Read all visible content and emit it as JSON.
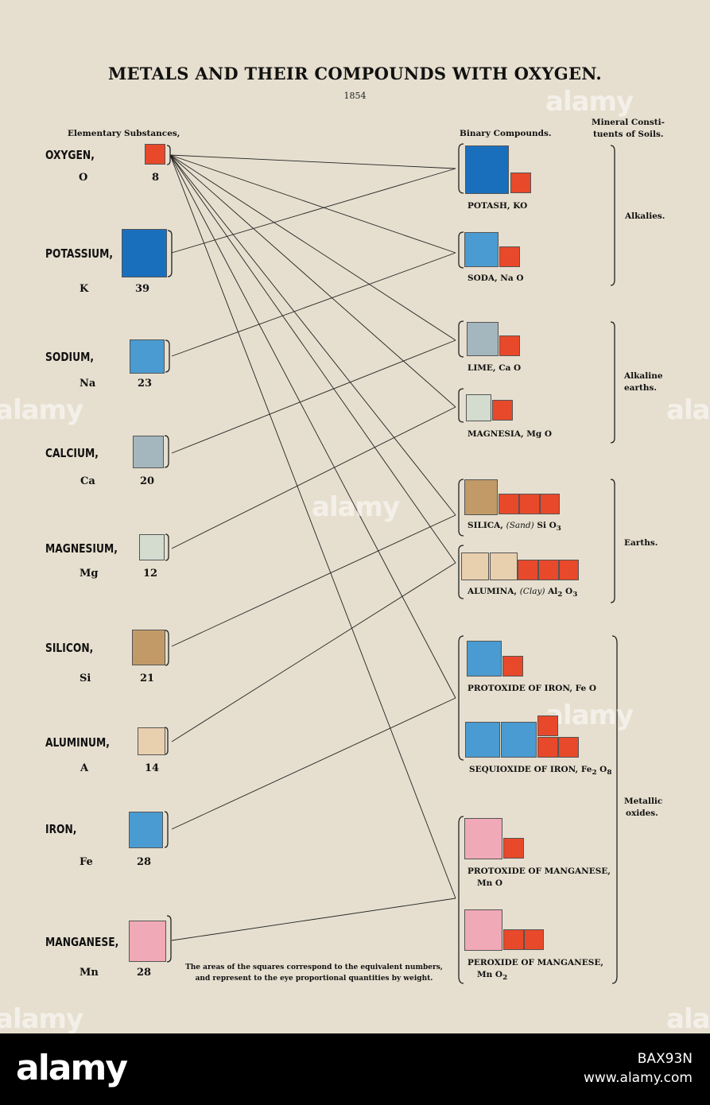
{
  "title": "METALS AND THEIR COMPOUNDS WITH OXYGEN.",
  "year": "1854",
  "headers": {
    "elementary": "Elementary Substances,",
    "binary": "Binary Compounds.",
    "mineral_line1": "Mineral Consti-",
    "mineral_line2": "tuents of Soils."
  },
  "elements": [
    {
      "name": "OXYGEN,",
      "symbol": "O",
      "number": "8",
      "color": "#e8492a"
    },
    {
      "name": "POTASSIUM,",
      "symbol": "K",
      "number": "39",
      "color": "#1a6fbd"
    },
    {
      "name": "SODIUM,",
      "symbol": "Na",
      "number": "23",
      "color": "#4a9bd1"
    },
    {
      "name": "CALCIUM,",
      "symbol": "Ca",
      "number": "20",
      "color": "#a5b7be"
    },
    {
      "name": "MAGNESIUM,",
      "symbol": "Mg",
      "number": "12",
      "color": "#d3dccf"
    },
    {
      "name": "SILICON,",
      "symbol": "Si",
      "number": "21",
      "color": "#c29a68"
    },
    {
      "name": "ALUMINUM,",
      "symbol": "A",
      "number": "14",
      "color": "#e8cfae"
    },
    {
      "name": "IRON,",
      "symbol": "Fe",
      "number": "28",
      "color": "#4a9bd1"
    },
    {
      "name": "MANGANESE,",
      "symbol": "Mn",
      "number": "28",
      "color": "#f0a9b6"
    }
  ],
  "compounds": [
    {
      "label": "POTASH, KO"
    },
    {
      "label": "SODA, Na O"
    },
    {
      "label": "LIME, Ca O"
    },
    {
      "label": "MAGNESIA, Mg O"
    },
    {
      "label_pre": "SILICA, ",
      "label_italic": "(Sand)",
      "label_formula": " Si O",
      "label_sub": "3"
    },
    {
      "label_pre": "ALUMINA, ",
      "label_italic": "(Clay)",
      "label_formula": " Al",
      "label_sub": "2",
      "label_formula2": " O",
      "label_sub2": "3"
    },
    {
      "label": "PROTOXIDE OF IRON, Fe O"
    },
    {
      "label_formula": "SEQUIOXIDE OF IRON, Fe",
      "label_sub": "2",
      "label_formula2": " O",
      "label_sub2": "8"
    },
    {
      "label": "PROTOXIDE OF MANGANESE,",
      "label2": "Mn O"
    },
    {
      "label": "PEROXIDE OF MANGANESE,",
      "label2_pre": "Mn O",
      "label2_sub": "2"
    }
  ],
  "groups": {
    "alkalies": "Alkalies.",
    "alkaline_1": "Alkaline",
    "alkaline_2": "earths.",
    "earths": "Earths.",
    "metallic_1": "Metallic",
    "metallic_2": "oxides."
  },
  "note_line1": "The areas of the squares correspond to the equivalent numbers,",
  "note_line2": "and represent to the eye proportional quantities by weight.",
  "watermark": "alamy",
  "footer": {
    "logo": "alamy",
    "image_id": "BAX93N",
    "url": "www.alamy.com"
  }
}
